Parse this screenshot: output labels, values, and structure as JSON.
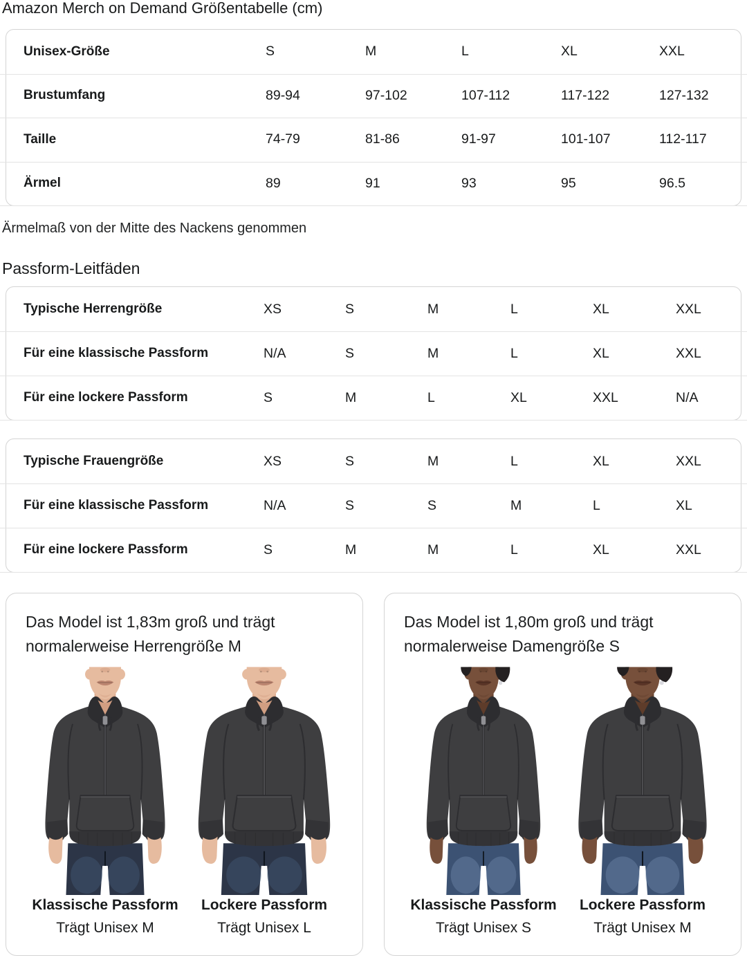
{
  "page_title": "Amazon Merch on Demand Größentabelle (cm)",
  "sleeve_note": "Ärmelmaß von der Mitte des Nackens genommen",
  "fit_guides_heading": "Passform-Leitfäden",
  "size_table": {
    "rows": [
      {
        "label": "Unisex-Größe",
        "values": [
          "S",
          "M",
          "L",
          "XL",
          "XXL"
        ]
      },
      {
        "label": "Brustumfang",
        "values": [
          "89-94",
          "97-102",
          "107-112",
          "117-122",
          "127-132"
        ]
      },
      {
        "label": "Taille",
        "values": [
          "74-79",
          "81-86",
          "91-97",
          "101-107",
          "112-117"
        ]
      },
      {
        "label": "Ärmel",
        "values": [
          "89",
          "91",
          "93",
          "95",
          "96.5"
        ]
      }
    ]
  },
  "fit_tables": [
    {
      "rows": [
        {
          "label": "Typische Herrengröße",
          "values": [
            "XS",
            "S",
            "M",
            "L",
            "XL",
            "XXL"
          ]
        },
        {
          "label": "Für eine klassische Passform",
          "values": [
            "N/A",
            "S",
            "M",
            "L",
            "XL",
            "XXL"
          ]
        },
        {
          "label": "Für eine lockere Passform",
          "values": [
            "S",
            "M",
            "L",
            "XL",
            "XXL",
            "N/A"
          ]
        }
      ]
    },
    {
      "rows": [
        {
          "label": "Typische Frauengröße",
          "values": [
            "XS",
            "S",
            "M",
            "L",
            "XL",
            "XXL"
          ]
        },
        {
          "label": "Für eine klassische Passform",
          "values": [
            "N/A",
            "S",
            "S",
            "M",
            "L",
            "XL"
          ]
        },
        {
          "label": "Für eine lockere Passform",
          "values": [
            "S",
            "M",
            "M",
            "L",
            "XL",
            "XXL"
          ]
        }
      ]
    }
  ],
  "model_cards": [
    {
      "description": "Das Model ist 1,83m groß und trägt normalerweise Herrengröße M",
      "models": [
        {
          "figure": "male-model-photo",
          "fit": "classic",
          "fit_label": "Klassische Passform",
          "size_label": "Trägt Unisex M"
        },
        {
          "figure": "male-model-photo",
          "fit": "loose",
          "fit_label": "Lockere Passform",
          "size_label": "Trägt Unisex L"
        }
      ]
    },
    {
      "description": "Das Model ist 1,80m groß und trägt normalerweise Damengröße S",
      "models": [
        {
          "figure": "female-model-photo",
          "fit": "classic",
          "fit_label": "Klassische Passform",
          "size_label": "Trägt Unisex S"
        },
        {
          "figure": "female-model-photo",
          "fit": "loose",
          "fit_label": "Lockere Passform",
          "size_label": "Trägt Unisex M"
        }
      ]
    }
  ],
  "colors": {
    "ink": "#181a1b",
    "border": "#d4d4d4",
    "divider": "#e3e3e3",
    "hoodie": "#3e3e40",
    "hoodie_dark": "#2d2d30",
    "hem": "#333336",
    "male_skin": "#e6bb9f",
    "male_skin_shadow": "#d19e82",
    "male_lip": "#bc8570",
    "male_jeans": "#2c3547",
    "male_jeans_light": "#48607f",
    "female_skin": "#77503b",
    "female_skin_shadow": "#5e3c2a",
    "female_lip": "#5a3527",
    "female_hair": "#242021",
    "female_jeans": "#3c5273",
    "female_jeans_light": "#7590b4",
    "earring_color": "#d9d9de"
  }
}
